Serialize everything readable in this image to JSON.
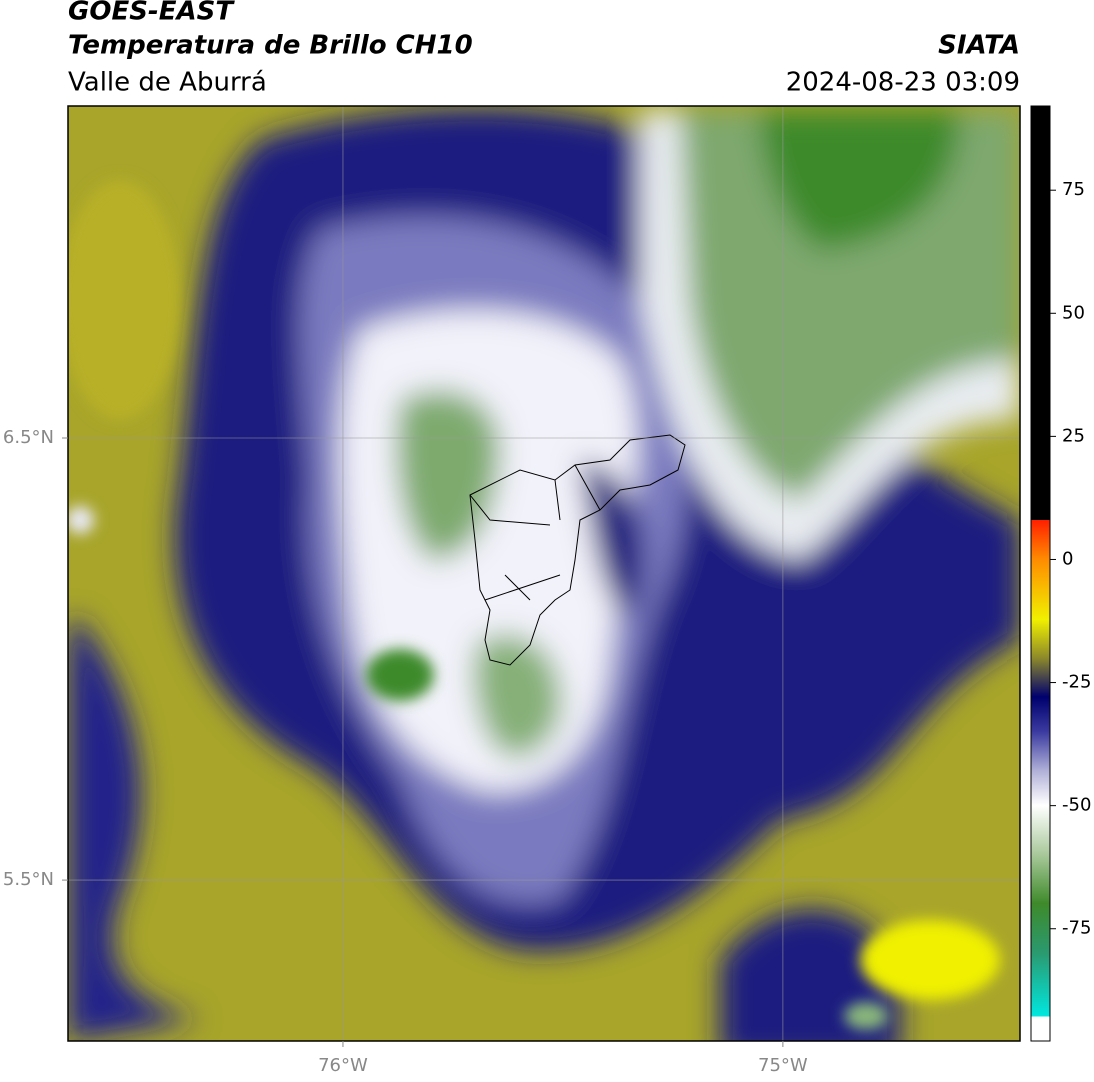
{
  "header": {
    "line1": "GOES-EAST",
    "line2": "Temperatura de Brillo CH10",
    "line3": "Valle de Aburrá",
    "source": "SIATA",
    "datetime": "2024-08-23 03:09"
  },
  "map": {
    "xlim": [
      -76.625,
      -74.461
    ],
    "ylim": [
      5.136,
      7.251
    ],
    "xticks": [
      {
        "value": -76,
        "label": "76°W"
      },
      {
        "value": -75,
        "label": "75°W"
      }
    ],
    "yticks": [
      {
        "value": 6.5,
        "label": "6.5°N"
      },
      {
        "value": 5.5,
        "label": "5.5°N"
      }
    ],
    "grid": true
  },
  "colorbar": {
    "lim": [
      -97.8,
      92.1
    ],
    "ticks": [
      75,
      50,
      25,
      0,
      -25,
      -50,
      -75
    ]
  }
}
